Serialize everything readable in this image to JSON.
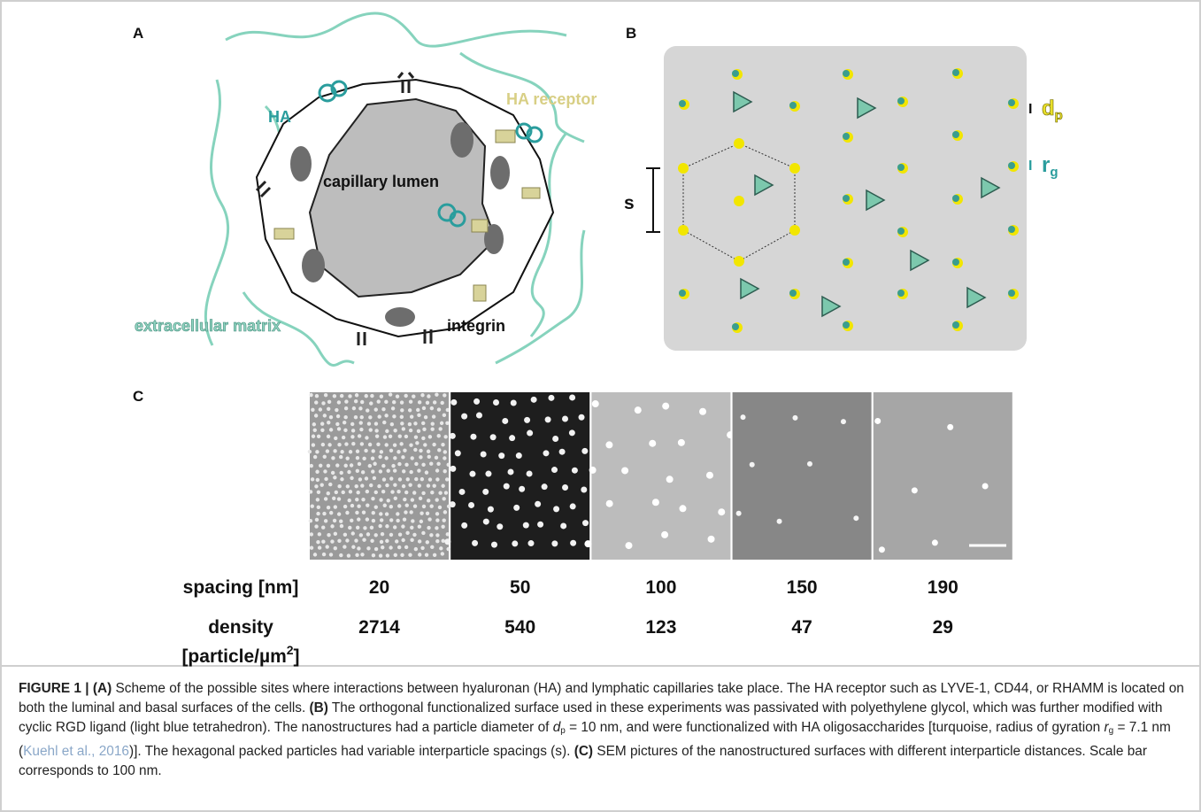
{
  "panel_a": {
    "label": "A",
    "ha": "HA",
    "ha_receptor": "HA receptor",
    "lumen": "capillary lumen",
    "ecm": "extracellular matrix",
    "integrin": "integrin"
  },
  "panel_b": {
    "label": "B",
    "spacing": "s",
    "particle_diameter": {
      "symbol": "d",
      "sub": "p"
    },
    "radius_of_gyration": {
      "symbol": "r",
      "sub": "g"
    }
  },
  "panel_c": {
    "label": "C",
    "spacing_label": "spacing [nm]",
    "spacings": [
      20,
      50,
      100,
      150,
      190
    ],
    "density_label": "density",
    "density_unit": {
      "text": "[particle/µm",
      "sup": "2",
      "close": "]"
    },
    "densities": [
      2714,
      540,
      123,
      47,
      29
    ]
  },
  "caption": {
    "runs": [
      {
        "text": "FIGURE 1 | "
      },
      {
        "text": "(A)"
      },
      {
        "text": " Scheme of the possible sites where interactions between hyaluronan (HA) and lymphatic capillaries take place. The HA receptor such as LYVE-1, CD44, or RHAMM is located on both the luminal and basal surfaces of the cells. "
      },
      {
        "text": "(B)"
      },
      {
        "text": " The orthogonal functionalized surface used in these experiments was passivated with polyethylene glycol, which was further modified with cyclic RGD ligand (light blue tetrahedron). The nanostructures had a particle diameter of "
      },
      {
        "text": "d"
      },
      {
        "text": "p"
      },
      {
        "text": " = 10 nm, and were functionalized with HA oligosaccharides [turquoise, radius of gyration "
      },
      {
        "text": "r"
      },
      {
        "text": "g"
      },
      {
        "text": " = 7.1 nm ("
      },
      {
        "text": "Kuehl et al., 2016"
      },
      {
        "text": ")]. The hexagonal packed particles had variable interparticle spacings (s). "
      },
      {
        "text": "(C)"
      },
      {
        "text": " SEM pictures of the nanostructured surfaces with different interparticle distances. Scale bar corresponds to 100 nm."
      }
    ]
  }
}
